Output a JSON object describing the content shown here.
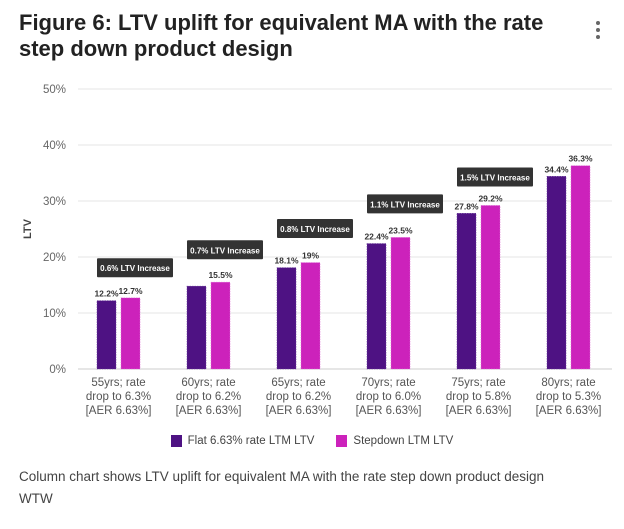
{
  "header": {
    "title": "Figure 6: LTV uplift for equivalent MA with the rate step down product design",
    "menu_icon": "kebab-menu-icon"
  },
  "caption": "Column chart shows LTV uplift for equivalent MA with the rate step down product design",
  "source": "WTW",
  "colors": {
    "flat": "#4e1283",
    "stepdown": "#cc22bb",
    "annotation_bg": "#333333",
    "grid": "#e6e6e6"
  },
  "chart_data": {
    "type": "bar",
    "title": "Figure 6: LTV uplift for equivalent MA with the rate step down product design",
    "xlabel": "",
    "ylabel": "LTV",
    "ylim": [
      0,
      50
    ],
    "yticks": [
      "0%",
      "10%",
      "20%",
      "30%",
      "40%",
      "50%"
    ],
    "ytick_values": [
      0,
      10,
      20,
      30,
      40,
      50
    ],
    "grid": true,
    "legend_position": "bottom",
    "categories": [
      [
        "55yrs; rate",
        "drop to 6.3%",
        "[AER 6.63%]"
      ],
      [
        "60yrs; rate",
        "drop to 6.2%",
        "[AER 6.63%]"
      ],
      [
        "65yrs; rate",
        "drop to 6.2%",
        "[AER 6.63%]"
      ],
      [
        "70yrs; rate",
        "drop to 6.0%",
        "[AER 6.63%]"
      ],
      [
        "75yrs; rate",
        "drop to 5.8%",
        "[AER 6.63%]"
      ],
      [
        "80yrs; rate",
        "drop to 5.3%",
        "[AER 6.63%]"
      ]
    ],
    "series": [
      {
        "name": "Flat 6.63% rate LTM LTV",
        "values": [
          12.2,
          14.8,
          18.1,
          22.4,
          27.8,
          34.4
        ],
        "labels": [
          "12.2%",
          "",
          "18.1%",
          "22.4%",
          "27.8%",
          "34.4%"
        ]
      },
      {
        "name": "Stepdown LTM LTV",
        "values": [
          12.7,
          15.5,
          19.0,
          23.5,
          29.2,
          36.3
        ],
        "labels": [
          "12.7%",
          "15.5%",
          "19%",
          "23.5%",
          "29.2%",
          "36.3%"
        ]
      }
    ],
    "annotations": [
      {
        "text": "0.6% LTV Increase",
        "category_index": 0,
        "y": 18.0
      },
      {
        "text": "0.7% LTV Increase",
        "category_index": 1,
        "y": 21.2
      },
      {
        "text": "0.8% LTV Increase",
        "category_index": 2,
        "y": 25.0
      },
      {
        "text": "1.1% LTV Increase",
        "category_index": 3,
        "y": 29.4
      },
      {
        "text": "1.5% LTV Increase",
        "category_index": 4,
        "y": 34.2
      }
    ]
  }
}
